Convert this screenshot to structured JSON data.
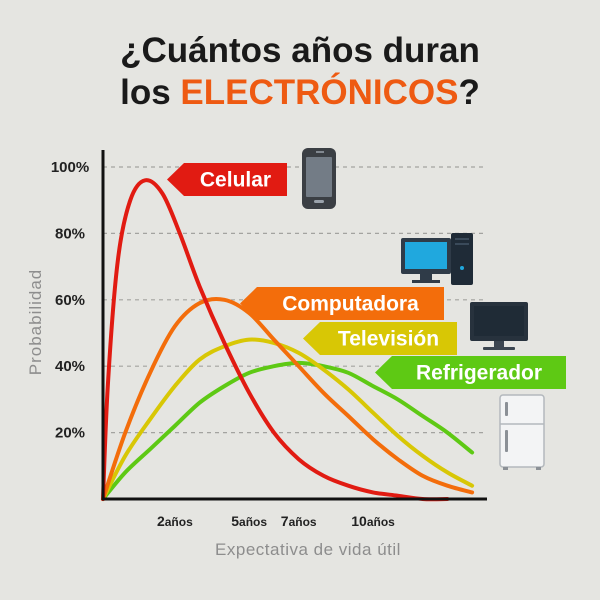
{
  "title": {
    "line1": "¿Cuántos años duran",
    "line2_prefix": "los ",
    "line2_highlight": "ELECTRÓNICOS",
    "line2_suffix": "?"
  },
  "chart_data": {
    "type": "line",
    "title": "¿Cuántos años duran los ELECTRÓNICOS?",
    "xlabel": "Expectativa de vida útil",
    "ylabel": "Probabilidad",
    "ylim": [
      0,
      100
    ],
    "y_ticks": [
      {
        "value": 20,
        "label": "20%"
      },
      {
        "value": 40,
        "label": "40%"
      },
      {
        "value": 60,
        "label": "60%"
      },
      {
        "value": 80,
        "label": "80%"
      },
      {
        "value": 100,
        "label": "100%"
      }
    ],
    "x_ticks": [
      {
        "value": 2,
        "num": "2",
        "unit": "años"
      },
      {
        "value": 5,
        "num": "5",
        "unit": "años"
      },
      {
        "value": 7,
        "num": "7",
        "unit": "años"
      },
      {
        "value": 10,
        "num": "10",
        "unit": "años"
      }
    ],
    "xlim": [
      -0.9,
      14.6
    ],
    "grid": "horizontal dashed",
    "series": [
      {
        "name": "Celular",
        "color": "#e11b12",
        "icon": "smartphone-icon",
        "x": [
          -0.9,
          -0.7,
          -0.3,
          0.2,
          0.8,
          1.5,
          2.2,
          3.0,
          4.0,
          5.0,
          6.0,
          7.0,
          8.0,
          9.0,
          10.0,
          11.0,
          12.0,
          13.0
        ],
        "y": [
          0,
          35,
          72,
          90,
          96,
          92,
          80,
          64,
          47,
          32,
          20,
          12,
          7,
          4,
          2,
          1,
          0,
          0
        ]
      },
      {
        "name": "Computadora",
        "color": "#f36d0b",
        "icon": "desktop-computer-icon",
        "x": [
          -0.9,
          0.0,
          1.0,
          2.0,
          3.0,
          4.0,
          5.0,
          6.0,
          7.0,
          8.0,
          9.0,
          10.0,
          11.0,
          12.0,
          13.0,
          14.0
        ],
        "y": [
          0,
          20,
          38,
          52,
          59,
          60,
          56,
          48,
          40,
          32,
          25,
          18,
          12,
          7,
          4,
          2
        ]
      },
      {
        "name": "Televisión",
        "color": "#d8c705",
        "icon": "television-icon",
        "x": [
          -0.9,
          0.0,
          1.0,
          2.0,
          3.0,
          4.0,
          5.0,
          6.0,
          7.0,
          8.0,
          9.0,
          10.0,
          11.0,
          12.0,
          13.0,
          14.0
        ],
        "y": [
          0,
          13,
          24,
          34,
          42,
          46,
          48,
          47,
          44,
          39,
          33,
          26,
          19,
          13,
          8,
          4
        ]
      },
      {
        "name": "Refrigerador",
        "color": "#5ec914",
        "icon": "refrigerator-icon",
        "x": [
          -0.9,
          0.0,
          1.0,
          2.0,
          3.0,
          4.0,
          5.0,
          6.0,
          7.0,
          8.0,
          9.0,
          10.0,
          11.0,
          12.0,
          13.0,
          14.0
        ],
        "y": [
          0,
          8,
          15,
          22,
          29,
          34,
          38,
          40,
          41,
          40,
          38,
          34,
          30,
          25,
          20,
          14
        ]
      }
    ]
  }
}
